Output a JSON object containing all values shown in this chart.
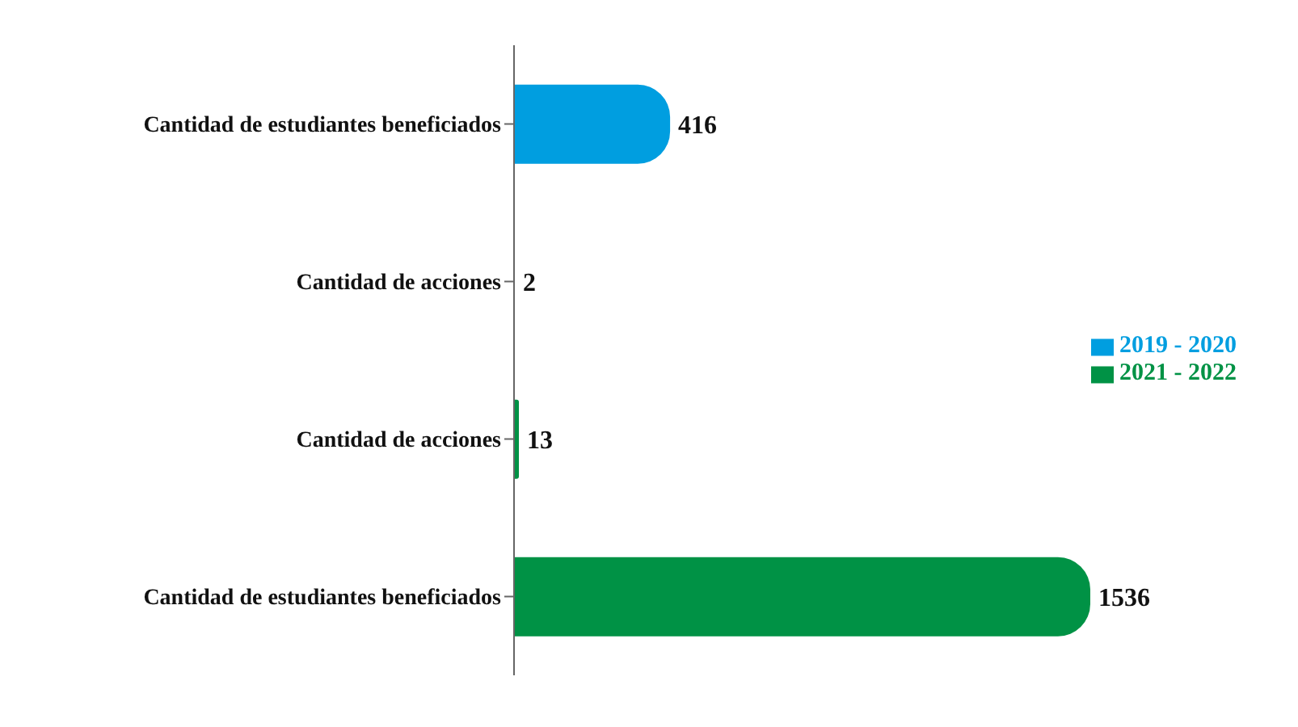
{
  "chart_data": {
    "type": "bar",
    "orientation": "horizontal",
    "stacked": true,
    "categories": [
      "Cantidad de estudiantes beneficiados",
      "Cantidad de acciones",
      "Cantidad de acciones",
      "Cantidad de estudiantes beneficiados"
    ],
    "series": [
      {
        "name": "2019 - 2020",
        "color": "#009ee0",
        "values": [
          416,
          2,
          null,
          null
        ]
      },
      {
        "name": "2021 - 2022",
        "color": "#009245",
        "values": [
          null,
          null,
          13,
          1536
        ]
      }
    ],
    "data_labels": true,
    "tick_labels": "y",
    "grid": false,
    "legend": "right"
  }
}
